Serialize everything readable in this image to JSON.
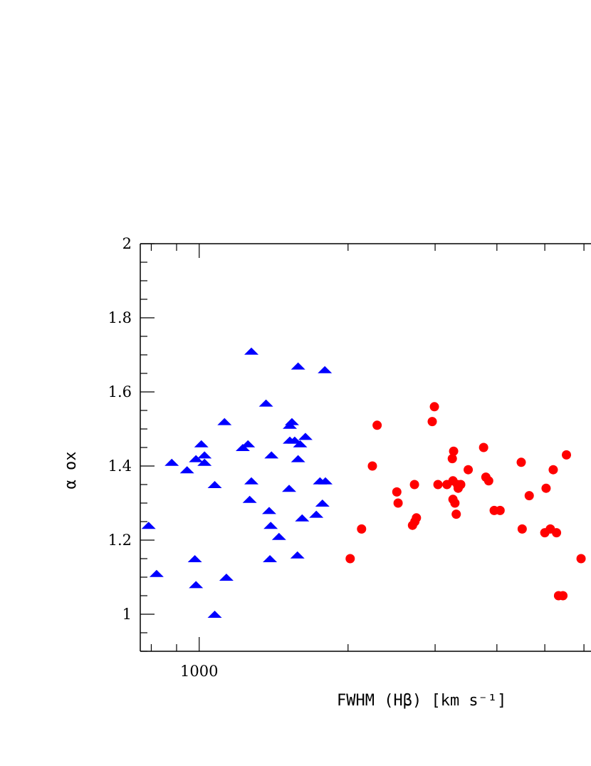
{
  "chart_data": {
    "type": "scatter",
    "title": "",
    "xlabel": "FWHM (Hβ) [km s⁻¹]",
    "ylabel": "α ox",
    "x_scale": "log",
    "xlim": [
      760,
      6200
    ],
    "ylim": [
      0.9,
      2.0
    ],
    "x_tick_labels": [
      {
        "value": 1000,
        "label": "1000"
      }
    ],
    "x_minor_ticks": [
      800,
      900,
      1000,
      2000,
      3000,
      4000,
      5000,
      6000
    ],
    "y_tick_labels": [
      {
        "value": 1.0,
        "label": "1"
      },
      {
        "value": 1.2,
        "label": "1.2"
      },
      {
        "value": 1.4,
        "label": "1.4"
      },
      {
        "value": 1.6,
        "label": "1.6"
      },
      {
        "value": 1.8,
        "label": "1.8"
      },
      {
        "value": 2.0,
        "label": "2"
      }
    ],
    "grid": false,
    "legend": null,
    "series": [
      {
        "marker": "triangle",
        "color": "#0000ff",
        "points": [
          [
            790,
            1.24
          ],
          [
            820,
            1.11
          ],
          [
            880,
            1.41
          ],
          [
            945,
            1.39
          ],
          [
            980,
            1.15
          ],
          [
            985,
            1.42
          ],
          [
            985,
            1.08
          ],
          [
            1010,
            1.46
          ],
          [
            1025,
            1.43
          ],
          [
            1025,
            1.41
          ],
          [
            1075,
            1.35
          ],
          [
            1075,
            1.0
          ],
          [
            1125,
            1.52
          ],
          [
            1135,
            1.1
          ],
          [
            1225,
            1.45
          ],
          [
            1255,
            1.46
          ],
          [
            1265,
            1.31
          ],
          [
            1275,
            1.36
          ],
          [
            1275,
            1.71
          ],
          [
            1365,
            1.57
          ],
          [
            1390,
            1.15
          ],
          [
            1385,
            1.28
          ],
          [
            1395,
            1.24
          ],
          [
            1400,
            1.43
          ],
          [
            1450,
            1.21
          ],
          [
            1520,
            1.34
          ],
          [
            1525,
            1.47
          ],
          [
            1525,
            1.51
          ],
          [
            1540,
            1.52
          ],
          [
            1560,
            1.47
          ],
          [
            1580,
            1.16
          ],
          [
            1585,
            1.42
          ],
          [
            1585,
            1.67
          ],
          [
            1600,
            1.46
          ],
          [
            1615,
            1.26
          ],
          [
            1640,
            1.48
          ],
          [
            1725,
            1.27
          ],
          [
            1755,
            1.36
          ],
          [
            1775,
            1.3
          ],
          [
            1800,
            1.36
          ],
          [
            1795,
            1.66
          ]
        ]
      },
      {
        "marker": "circle",
        "color": "#ff0000",
        "points": [
          [
            2020,
            1.15
          ],
          [
            2130,
            1.23
          ],
          [
            2240,
            1.4
          ],
          [
            2290,
            1.51
          ],
          [
            2510,
            1.33
          ],
          [
            2525,
            1.3
          ],
          [
            2700,
            1.24
          ],
          [
            2725,
            1.35
          ],
          [
            2730,
            1.25
          ],
          [
            2750,
            1.26
          ],
          [
            2960,
            1.52
          ],
          [
            2990,
            1.56
          ],
          [
            3040,
            1.35
          ],
          [
            3170,
            1.35
          ],
          [
            3250,
            1.42
          ],
          [
            3260,
            1.36
          ],
          [
            3260,
            1.31
          ],
          [
            3270,
            1.44
          ],
          [
            3290,
            1.3
          ],
          [
            3310,
            1.27
          ],
          [
            3330,
            1.35
          ],
          [
            3340,
            1.34
          ],
          [
            3380,
            1.35
          ],
          [
            3500,
            1.39
          ],
          [
            3760,
            1.45
          ],
          [
            3800,
            1.37
          ],
          [
            3850,
            1.36
          ],
          [
            3950,
            1.28
          ],
          [
            4060,
            1.28
          ],
          [
            4480,
            1.41
          ],
          [
            4500,
            1.23
          ],
          [
            4650,
            1.32
          ],
          [
            5000,
            1.22
          ],
          [
            5030,
            1.34
          ],
          [
            5130,
            1.23
          ],
          [
            5200,
            1.39
          ],
          [
            5280,
            1.22
          ],
          [
            5330,
            1.05
          ],
          [
            5440,
            1.05
          ],
          [
            5530,
            1.43
          ],
          [
            5920,
            1.15
          ]
        ]
      }
    ]
  }
}
